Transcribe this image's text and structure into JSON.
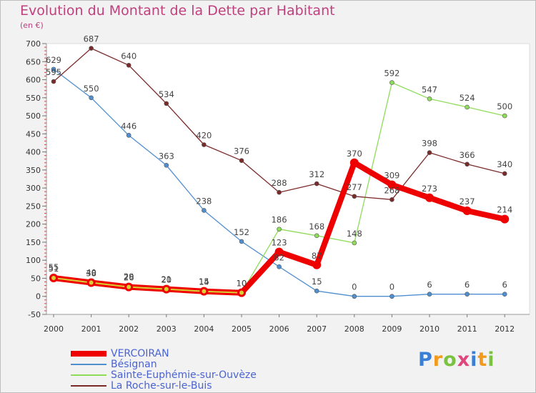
{
  "header": {
    "title": "Evolution du Montant de la Dette par Habitant",
    "unit": "(en €)"
  },
  "logo": {
    "text": "Proxiti",
    "letters": [
      {
        "ch": "P",
        "color": "#3a7fd5"
      },
      {
        "ch": "r",
        "color": "#f29a1e"
      },
      {
        "ch": "o",
        "color": "#7cc242"
      },
      {
        "ch": "x",
        "color": "#e0457b"
      },
      {
        "ch": "i",
        "color": "#3a7fd5"
      },
      {
        "ch": "t",
        "color": "#f29a1e"
      },
      {
        "ch": "i",
        "color": "#7cc242"
      }
    ]
  },
  "chart_data": {
    "type": "line",
    "title": "Evolution du Montant de la Dette par Habitant",
    "ylabel": "(en €)",
    "xlabel": "",
    "x": [
      2000,
      2001,
      2002,
      2003,
      2004,
      2005,
      2006,
      2007,
      2008,
      2009,
      2010,
      2011,
      2012
    ],
    "ylim": [
      -50,
      700
    ],
    "yticks": [
      -50,
      0,
      50,
      100,
      150,
      200,
      250,
      300,
      350,
      400,
      450,
      500,
      550,
      600,
      650,
      700
    ],
    "grid": false,
    "legend_position": "bottom-left",
    "series": [
      {
        "name": "VERCOIRAN",
        "color": "#ee0000",
        "accent": "#d7d234",
        "values": [
          51,
          38,
          26,
          20,
          14,
          10,
          123,
          87,
          370,
          309,
          273,
          237,
          214
        ],
        "labels": [
          "51",
          "38",
          "26",
          "20",
          "14",
          "10",
          "123",
          "87",
          "370",
          "309",
          "273",
          "237",
          "214"
        ]
      },
      {
        "name": "Bésignan",
        "color": "#4f8fd0",
        "values": [
          629,
          550,
          446,
          363,
          238,
          152,
          82,
          15,
          0,
          0,
          6,
          6,
          6
        ],
        "labels": [
          "629",
          "550",
          "446",
          "363",
          "238",
          "152",
          "82",
          "15",
          "0",
          "0",
          "6",
          "6",
          "6"
        ]
      },
      {
        "name": "Sainte-Euphémie-sur-Ouvèze",
        "color": "#8fdc5a",
        "values": [
          null,
          null,
          null,
          null,
          null,
          10,
          186,
          168,
          148,
          592,
          547,
          524,
          500
        ],
        "labels": [
          "",
          "",
          "",
          "",
          "",
          "",
          "186",
          "168",
          "148",
          "592",
          "547",
          "524",
          "500"
        ]
      },
      {
        "name": "La Roche-sur-le-Buis",
        "color": "#7b2a2a",
        "values": [
          595,
          687,
          640,
          534,
          420,
          376,
          288,
          312,
          277,
          268,
          398,
          366,
          340
        ],
        "labels": [
          "595",
          "687",
          "640",
          "534",
          "420",
          "376",
          "288",
          "312",
          "277",
          "268",
          "398",
          "366",
          "340"
        ]
      }
    ],
    "extra_labels": [
      {
        "year": 2000,
        "value": 55,
        "text": "55"
      },
      {
        "year": 2001,
        "value": 40,
        "text": "40"
      },
      {
        "year": 2002,
        "value": 29,
        "text": "29"
      },
      {
        "year": 2003,
        "value": 21,
        "text": "21"
      },
      {
        "year": 2004,
        "value": 15,
        "text": "15"
      },
      {
        "year": 2005,
        "value": 10,
        "text": "10"
      }
    ]
  }
}
